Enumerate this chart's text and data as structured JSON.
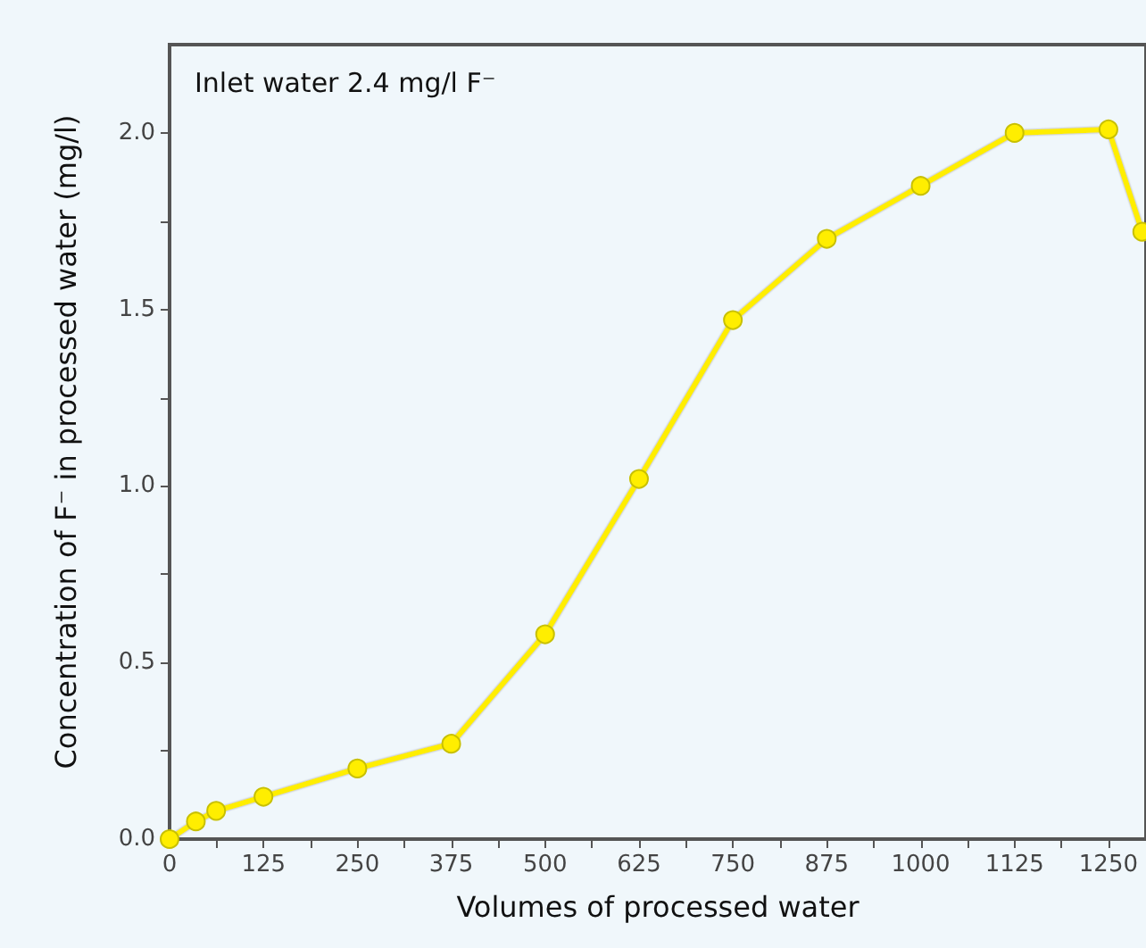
{
  "chart_data": {
    "type": "line",
    "xlabel": "Volumes of processed water",
    "ylabel": "Concentration of F⁻ in processed water (mg/l)",
    "annotations": [
      "Inlet water 2.4 mg/l F⁻"
    ],
    "x": [
      0,
      35,
      62,
      125,
      250,
      375,
      500,
      625,
      750,
      875,
      1000,
      1125,
      1250,
      1295
    ],
    "series": [
      {
        "color": "#ffee00",
        "values": [
          0,
          0.05,
          0.08,
          0.12,
          0.2,
          0.27,
          0.58,
          1.02,
          1.47,
          1.7,
          1.85,
          2.0,
          2.01,
          1.72
        ]
      }
    ],
    "xlim": [
      0,
      1300
    ],
    "ylim": [
      0,
      2.25
    ],
    "xticks": [
      0,
      {
        "value": 62.5,
        "label": null
      },
      125,
      {
        "value": 187.5,
        "label": null
      },
      250,
      {
        "value": 312.5,
        "label": null
      },
      375,
      {
        "value": 437.5,
        "label": null
      },
      500,
      {
        "value": 562.5,
        "label": null
      },
      625,
      {
        "value": 687.5,
        "label": null
      },
      750,
      {
        "value": 812.5,
        "label": null
      },
      875,
      {
        "value": 937.5,
        "label": null
      },
      1000,
      {
        "value": 1062.5,
        "label": null
      },
      1125,
      {
        "value": 1187.5,
        "label": null
      },
      1250
    ],
    "yticks": [
      {
        "value": 0,
        "label": "0.0"
      },
      {
        "value": 0.25,
        "label": null
      },
      {
        "value": 0.5,
        "label": "0.5"
      },
      {
        "value": 0.75,
        "label": null
      },
      {
        "value": 1,
        "label": "1.0"
      },
      {
        "value": 1.25,
        "label": null
      },
      {
        "value": 1.5,
        "label": "1.5"
      },
      {
        "value": 1.75,
        "label": null
      },
      {
        "value": 2,
        "label": "2.0"
      }
    ],
    "grid": false,
    "marker": "circle",
    "line_style": "solid"
  }
}
